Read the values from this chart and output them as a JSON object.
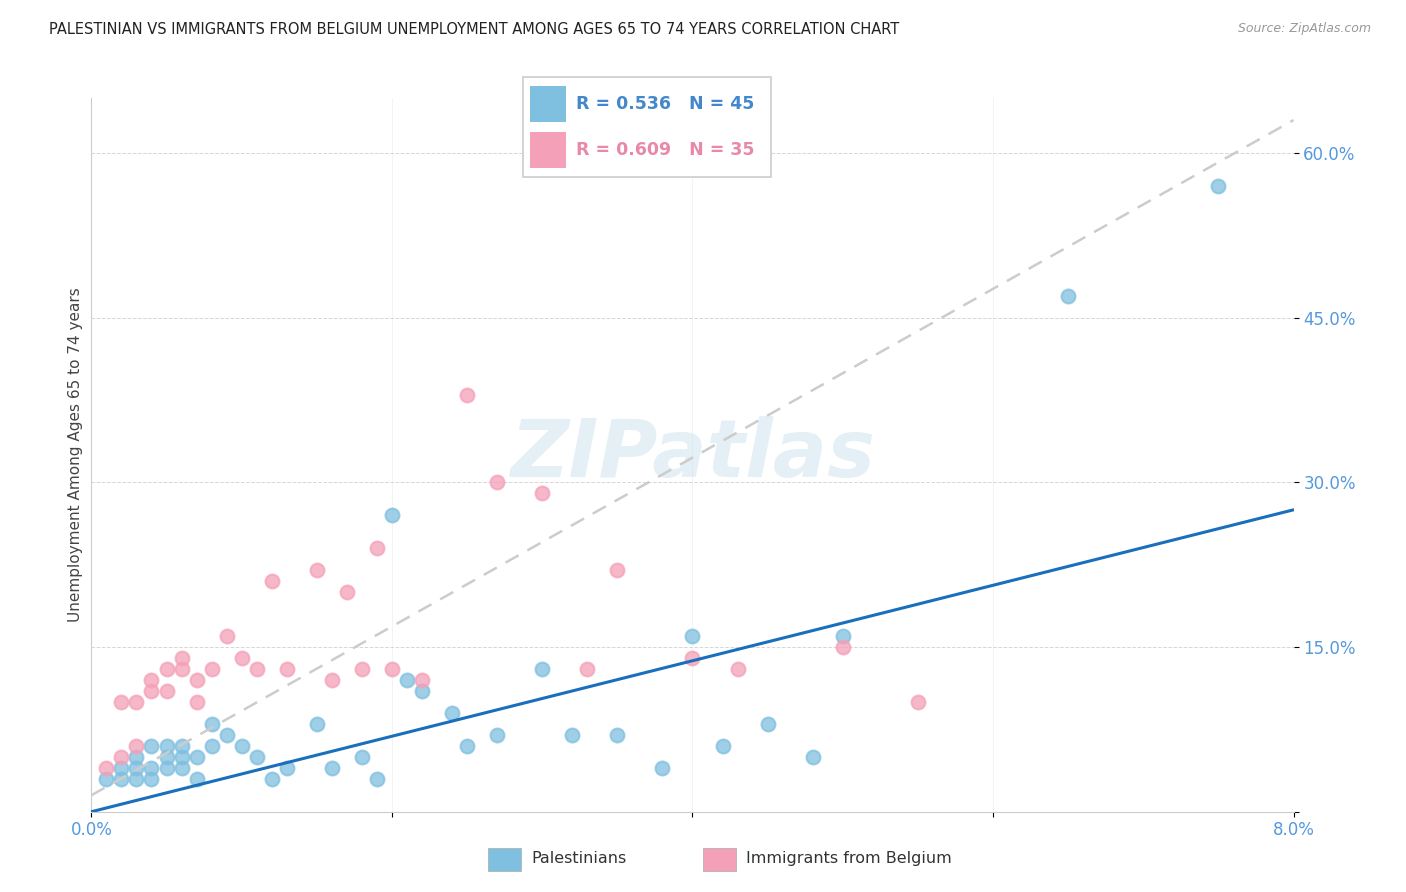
{
  "title": "PALESTINIAN VS IMMIGRANTS FROM BELGIUM UNEMPLOYMENT AMONG AGES 65 TO 74 YEARS CORRELATION CHART",
  "source": "Source: ZipAtlas.com",
  "ylabel": "Unemployment Among Ages 65 to 74 years",
  "xlim": [
    0.0,
    0.08
  ],
  "ylim": [
    0.0,
    0.65
  ],
  "xtick_positions": [
    0.0,
    0.02,
    0.04,
    0.06,
    0.08
  ],
  "xticklabels": [
    "0.0%",
    "",
    "",
    "",
    "8.0%"
  ],
  "ytick_positions": [
    0.0,
    0.15,
    0.3,
    0.45,
    0.6
  ],
  "yticklabels": [
    "",
    "15.0%",
    "30.0%",
    "45.0%",
    "60.0%"
  ],
  "blue_R": 0.536,
  "blue_N": 45,
  "pink_R": 0.609,
  "pink_N": 35,
  "blue_color": "#7fbfdf",
  "pink_color": "#f4a0b8",
  "blue_line_color": "#1a6fbd",
  "pink_line_color": "#cccccc",
  "watermark": "ZIPatlas",
  "blue_line_x0": 0.0,
  "blue_line_y0": 0.0,
  "blue_line_x1": 0.08,
  "blue_line_y1": 0.275,
  "pink_line_x0": 0.0,
  "pink_line_y0": 0.015,
  "pink_line_x1": 0.08,
  "pink_line_y1": 0.63,
  "blue_scatter_x": [
    0.001,
    0.002,
    0.002,
    0.003,
    0.003,
    0.003,
    0.004,
    0.004,
    0.004,
    0.005,
    0.005,
    0.005,
    0.006,
    0.006,
    0.006,
    0.007,
    0.007,
    0.008,
    0.008,
    0.009,
    0.01,
    0.011,
    0.012,
    0.013,
    0.015,
    0.016,
    0.018,
    0.019,
    0.02,
    0.021,
    0.022,
    0.024,
    0.025,
    0.027,
    0.03,
    0.032,
    0.035,
    0.038,
    0.04,
    0.042,
    0.045,
    0.048,
    0.05,
    0.065,
    0.075
  ],
  "blue_scatter_y": [
    0.03,
    0.04,
    0.03,
    0.05,
    0.04,
    0.03,
    0.06,
    0.03,
    0.04,
    0.05,
    0.04,
    0.06,
    0.06,
    0.04,
    0.05,
    0.05,
    0.03,
    0.08,
    0.06,
    0.07,
    0.06,
    0.05,
    0.03,
    0.04,
    0.08,
    0.04,
    0.05,
    0.03,
    0.27,
    0.12,
    0.11,
    0.09,
    0.06,
    0.07,
    0.13,
    0.07,
    0.07,
    0.04,
    0.16,
    0.06,
    0.08,
    0.05,
    0.16,
    0.47,
    0.57
  ],
  "pink_scatter_x": [
    0.001,
    0.002,
    0.002,
    0.003,
    0.003,
    0.004,
    0.004,
    0.005,
    0.005,
    0.006,
    0.006,
    0.007,
    0.007,
    0.008,
    0.009,
    0.01,
    0.011,
    0.012,
    0.013,
    0.015,
    0.016,
    0.017,
    0.018,
    0.019,
    0.02,
    0.022,
    0.025,
    0.027,
    0.03,
    0.033,
    0.035,
    0.04,
    0.043,
    0.05,
    0.055
  ],
  "pink_scatter_y": [
    0.04,
    0.05,
    0.1,
    0.06,
    0.1,
    0.12,
    0.11,
    0.13,
    0.11,
    0.13,
    0.14,
    0.1,
    0.12,
    0.13,
    0.16,
    0.14,
    0.13,
    0.21,
    0.13,
    0.22,
    0.12,
    0.2,
    0.13,
    0.24,
    0.13,
    0.12,
    0.38,
    0.3,
    0.29,
    0.13,
    0.22,
    0.14,
    0.13,
    0.15,
    0.1
  ]
}
